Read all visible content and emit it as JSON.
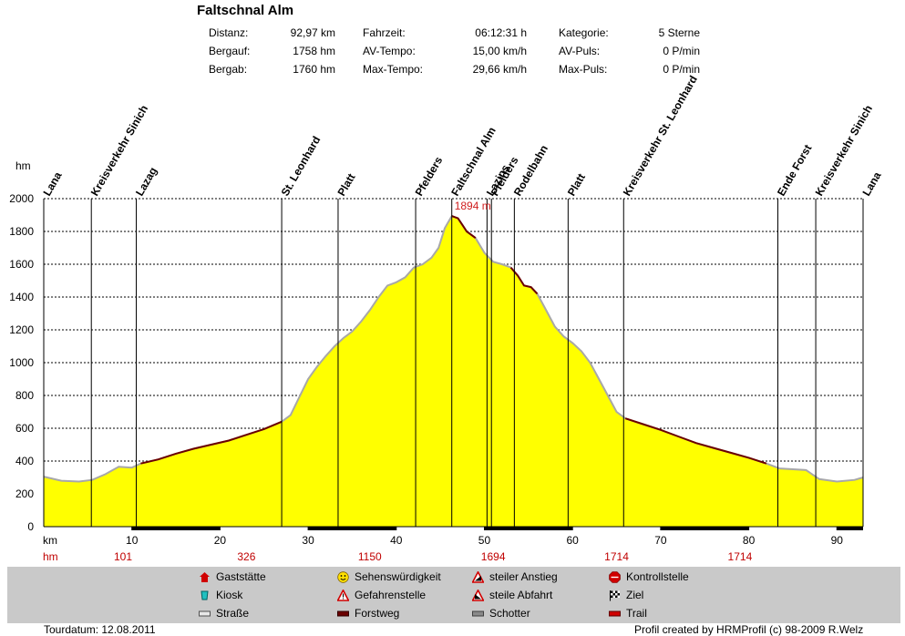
{
  "title": "Faltschnal Alm",
  "stats": [
    {
      "label": "Distanz:",
      "value": "92,97 km"
    },
    {
      "label": "Bergauf:",
      "value": "1758 hm"
    },
    {
      "label": "Bergab:",
      "value": "1760 hm"
    },
    {
      "label": "Fahrzeit:",
      "value": "06:12:31 h"
    },
    {
      "label": "AV-Tempo:",
      "value": "15,00 km/h"
    },
    {
      "label": "Max-Tempo:",
      "value": "29,66 km/h"
    },
    {
      "label": "Kategorie:",
      "value": "5 Sterne"
    },
    {
      "label": "AV-Puls:",
      "value": "0 P/min"
    },
    {
      "label": "Max-Puls:",
      "value": "0 P/min"
    }
  ],
  "chart_data": {
    "type": "area",
    "xlabel": "km",
    "ylabel": "hm",
    "xlim": [
      0,
      92.97
    ],
    "ylim": [
      0,
      2000
    ],
    "x_ticks": [
      10,
      20,
      30,
      40,
      50,
      60,
      70,
      80,
      90
    ],
    "y_ticks": [
      0,
      200,
      400,
      600,
      800,
      1000,
      1200,
      1400,
      1600,
      1800,
      2000
    ],
    "grid": true,
    "max_label": "1894 m",
    "max_point": {
      "x": 46.3,
      "y": 1894
    },
    "profile": [
      [
        0,
        305
      ],
      [
        2,
        280
      ],
      [
        4,
        275
      ],
      [
        5.5,
        285
      ],
      [
        7,
        320
      ],
      [
        8.5,
        365
      ],
      [
        10,
        360
      ],
      [
        11,
        385
      ],
      [
        13,
        410
      ],
      [
        15,
        445
      ],
      [
        17,
        475
      ],
      [
        19,
        500
      ],
      [
        21,
        525
      ],
      [
        23,
        560
      ],
      [
        25,
        595
      ],
      [
        27,
        640
      ],
      [
        28,
        680
      ],
      [
        29,
        790
      ],
      [
        30,
        900
      ],
      [
        31,
        975
      ],
      [
        32,
        1040
      ],
      [
        33,
        1100
      ],
      [
        34,
        1150
      ],
      [
        35,
        1190
      ],
      [
        36,
        1250
      ],
      [
        37,
        1320
      ],
      [
        38,
        1400
      ],
      [
        39,
        1470
      ],
      [
        40,
        1490
      ],
      [
        41,
        1520
      ],
      [
        42,
        1580
      ],
      [
        43,
        1600
      ],
      [
        44,
        1640
      ],
      [
        44.8,
        1700
      ],
      [
        45.5,
        1820
      ],
      [
        46.3,
        1894
      ],
      [
        47,
        1880
      ],
      [
        48,
        1800
      ],
      [
        49,
        1760
      ],
      [
        50,
        1670
      ],
      [
        51,
        1615
      ],
      [
        52,
        1600
      ],
      [
        53,
        1580
      ],
      [
        53.8,
        1530
      ],
      [
        54.5,
        1470
      ],
      [
        55.3,
        1460
      ],
      [
        56,
        1420
      ],
      [
        57,
        1320
      ],
      [
        58,
        1220
      ],
      [
        59,
        1160
      ],
      [
        60,
        1120
      ],
      [
        61,
        1070
      ],
      [
        62,
        1000
      ],
      [
        63,
        900
      ],
      [
        64,
        800
      ],
      [
        65,
        700
      ],
      [
        66,
        660
      ],
      [
        68,
        625
      ],
      [
        70,
        590
      ],
      [
        72,
        550
      ],
      [
        74,
        510
      ],
      [
        76,
        480
      ],
      [
        78,
        450
      ],
      [
        80,
        420
      ],
      [
        82,
        385
      ],
      [
        83.5,
        355
      ],
      [
        85,
        350
      ],
      [
        86.5,
        345
      ],
      [
        88,
        290
      ],
      [
        90,
        275
      ],
      [
        92,
        285
      ],
      [
        92.97,
        300
      ]
    ],
    "waypoints": [
      {
        "name": "Lana",
        "x": 0
      },
      {
        "name": "Kreisverkehr Sinich",
        "x": 5.4
      },
      {
        "name": "Lazag",
        "x": 10.5
      },
      {
        "name": "St. Leonhard",
        "x": 27
      },
      {
        "name": "Platt",
        "x": 33.4
      },
      {
        "name": "Pfelders",
        "x": 42.2
      },
      {
        "name": "Faltschnal Alm",
        "x": 46.3
      },
      {
        "name": "Lazins",
        "x": 50.3
      },
      {
        "name": "Pfelders",
        "x": 50.8
      },
      {
        "name": "Rodelbahn",
        "x": 53.4
      },
      {
        "name": "Platt",
        "x": 59.5
      },
      {
        "name": "Kreisverkehr St. Leonhard",
        "x": 65.8
      },
      {
        "name": "Ende Forst",
        "x": 83.3
      },
      {
        "name": "Kreisverkehr Sinich",
        "x": 87.6
      },
      {
        "name": "Lana",
        "x": 92.97
      }
    ],
    "hm_row": [
      {
        "x": 9,
        "label": "101"
      },
      {
        "x": 23,
        "label": "326"
      },
      {
        "x": 37,
        "label": "1150"
      },
      {
        "x": 51,
        "label": "1694"
      },
      {
        "x": 65,
        "label": "1714"
      },
      {
        "x": 79,
        "label": "1714"
      }
    ],
    "surface_segments": [
      [
        10,
        20
      ],
      [
        30,
        40
      ],
      [
        50,
        60
      ],
      [
        70,
        80
      ],
      [
        90,
        92.97
      ]
    ],
    "colors": {
      "fill": "#ffff00",
      "road": "#a8a8a8",
      "forestroad": "#6b0000",
      "max": "#d02020",
      "hm": "#c00000"
    }
  },
  "legend": {
    "items": [
      {
        "label": "Gaststätte",
        "icon": "house-icon"
      },
      {
        "label": "Kiosk",
        "icon": "kiosk-icon"
      },
      {
        "label": "Straße",
        "icon": "road-icon"
      },
      {
        "label": "Sehenswürdigkeit",
        "icon": "smiley-icon"
      },
      {
        "label": "Gefahrenstelle",
        "icon": "warning-icon"
      },
      {
        "label": "Forstweg",
        "icon": "forstweg-icon"
      },
      {
        "label": "steiler Anstieg",
        "icon": "steep-up-icon"
      },
      {
        "label": "steile Abfahrt",
        "icon": "steep-down-icon"
      },
      {
        "label": "Schotter",
        "icon": "gravel-icon"
      },
      {
        "label": "Kontrollstelle",
        "icon": "stop-icon"
      },
      {
        "label": "Ziel",
        "icon": "finish-flag-icon"
      },
      {
        "label": "Trail",
        "icon": "trail-icon"
      }
    ]
  },
  "footer": {
    "tourdatum": "Tourdatum: 12.08.2011",
    "credit": "Profil created by HRMProfil (c) 98-2009 R.Welz"
  }
}
